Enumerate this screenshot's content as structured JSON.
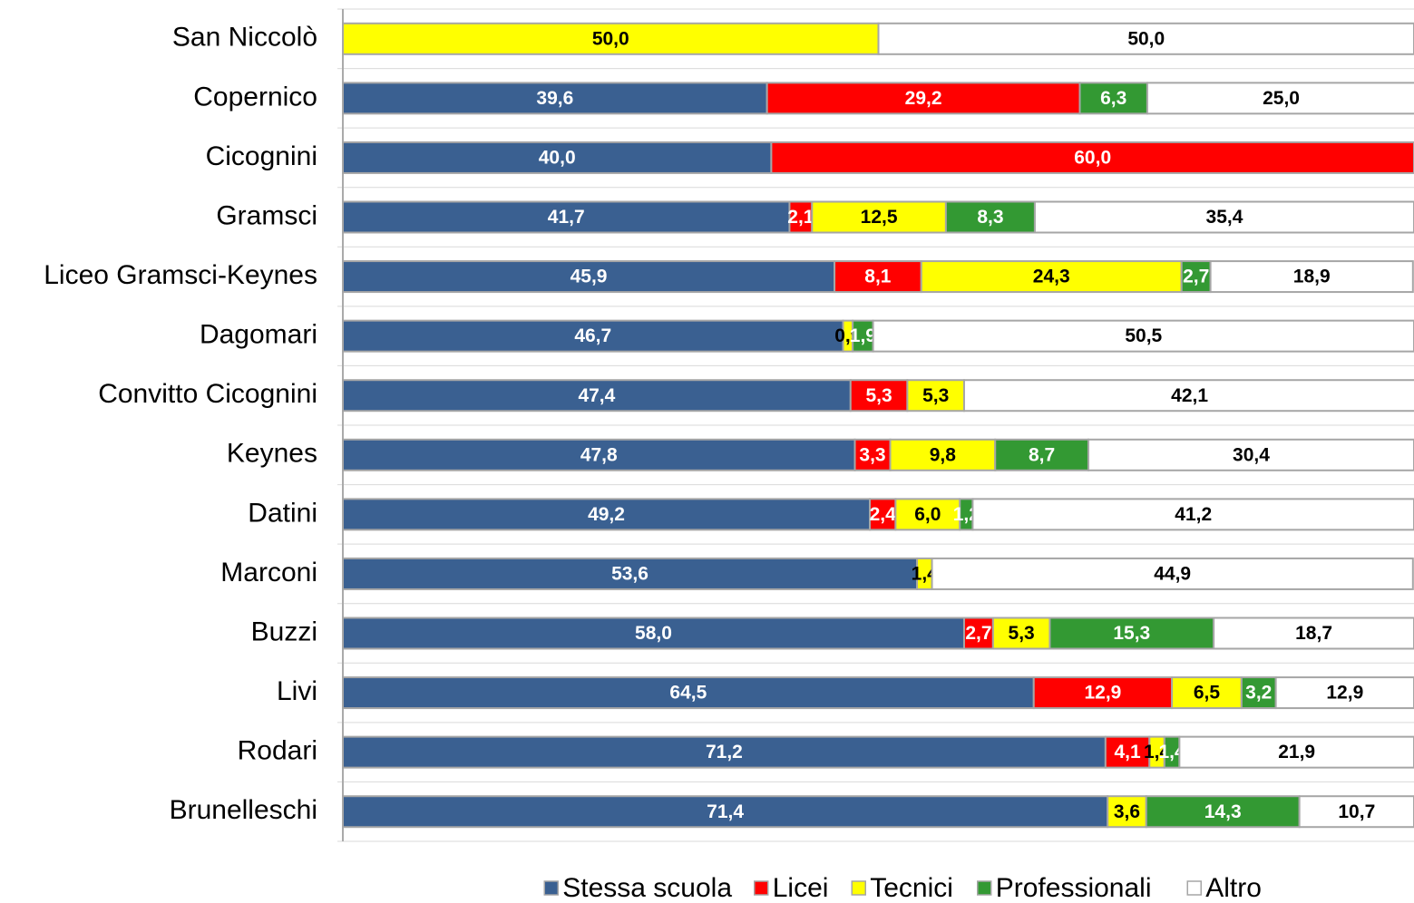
{
  "chart_data": {
    "type": "stacked_bar_horizontal",
    "categories": [
      "San Niccolò",
      "Copernico",
      "Cicognini",
      "Gramsci",
      "Liceo Gramsci-Keynes",
      "Dagomari",
      "Convitto Cicognini",
      "Keynes",
      "Datini",
      "Marconi",
      "Buzzi",
      "Livi",
      "Rodari",
      "Brunelleschi"
    ],
    "xlim": [
      0,
      100
    ],
    "series": [
      {
        "name": "Stessa scuola",
        "color": "#3a6091",
        "text_color": "#ffffff",
        "values": [
          null,
          39.6,
          40.0,
          41.7,
          45.9,
          46.7,
          47.4,
          47.8,
          49.2,
          53.6,
          58.0,
          64.5,
          71.2,
          71.4
        ],
        "value_labels": [
          null,
          "39,6",
          "40,0",
          "41,7",
          "45,9",
          "46,7",
          "47,4",
          "47,8",
          "49,2",
          "53,6",
          "58,0",
          "64,5",
          "71,2",
          "71,4"
        ]
      },
      {
        "name": "Licei",
        "color": "#ff0000",
        "text_color": "#ffffff",
        "values": [
          null,
          29.2,
          60.0,
          2.1,
          8.1,
          null,
          5.3,
          3.3,
          2.4,
          null,
          2.7,
          12.9,
          4.1,
          null
        ],
        "value_labels": [
          null,
          "29,2",
          "60,0",
          "2,1",
          "8,1",
          null,
          "5,3",
          "3,3",
          "2,4",
          null,
          "2,7",
          "12,9",
          "4,1",
          null
        ]
      },
      {
        "name": "Tecnici",
        "color": "#ffff00",
        "text_color": "#000000",
        "values": [
          50.0,
          null,
          null,
          12.5,
          24.3,
          0.9,
          5.3,
          9.8,
          6.0,
          1.4,
          5.3,
          6.5,
          1.4,
          3.6
        ],
        "value_labels": [
          "50,0",
          null,
          null,
          "12,5",
          "24,3",
          "0,9",
          "5,3",
          "9,8",
          "6,0",
          "1,4",
          "5,3",
          "6,5",
          "1,4",
          "3,6"
        ]
      },
      {
        "name": "Professionali",
        "color": "#339933",
        "text_color": "#ffffff",
        "values": [
          null,
          6.3,
          null,
          8.3,
          2.7,
          1.9,
          null,
          8.7,
          1.2,
          null,
          15.3,
          3.2,
          1.4,
          14.3
        ],
        "value_labels": [
          null,
          "6,3",
          null,
          "8,3",
          "2,7",
          "1,9",
          null,
          "8,7",
          "1,2",
          null,
          "15,3",
          "3,2",
          "1,4",
          "14,3"
        ]
      },
      {
        "name": "Altro",
        "color": "#ffffff",
        "text_color": "#000000",
        "values": [
          50.0,
          25.0,
          null,
          35.4,
          18.9,
          50.5,
          42.1,
          30.4,
          41.2,
          44.9,
          18.7,
          12.9,
          21.9,
          10.7
        ],
        "value_labels": [
          "50,0",
          "25,0",
          null,
          "35,4",
          "18,9",
          "50,5",
          "42,1",
          "30,4",
          "41,2",
          "44,9",
          "18,7",
          "12,9",
          "21,9",
          "10,7"
        ]
      }
    ],
    "legend": "bottom"
  }
}
